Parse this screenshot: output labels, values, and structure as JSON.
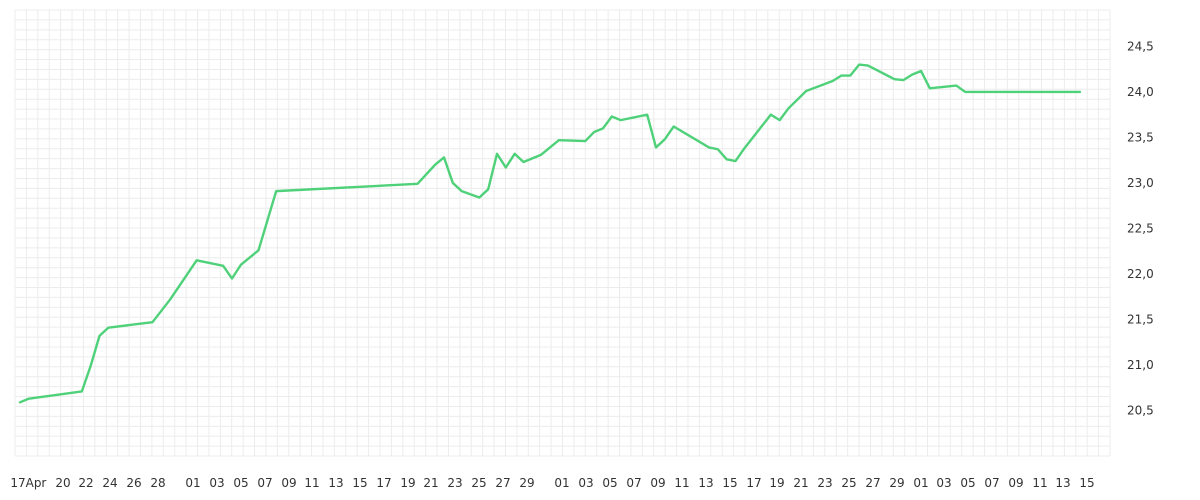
{
  "chart_data": {
    "type": "line",
    "title": "",
    "xlabel": "",
    "ylabel": "",
    "x_ticks": [
      "17",
      "Apr",
      "20",
      "22",
      "24",
      "26",
      "28",
      "01",
      "03",
      "05",
      "07",
      "09",
      "11",
      "13",
      "15",
      "17",
      "19",
      "21",
      "23",
      "25",
      "27",
      "29",
      "01",
      "03",
      "05",
      "07",
      "09",
      "11",
      "13",
      "15",
      "17",
      "19",
      "21",
      "23",
      "25",
      "27",
      "29",
      "01",
      "03",
      "05",
      "07",
      "09",
      "11",
      "13",
      "15"
    ],
    "y_ticks": [
      "20,5",
      "21,0",
      "21,5",
      "22,0",
      "22,5",
      "23,0",
      "23,5",
      "24,0",
      "24,5"
    ],
    "ylim": [
      20.0,
      24.9
    ],
    "y_axis_position": "right",
    "grid": true,
    "legend": "none",
    "colors": {
      "line": "#4fd17a",
      "grid": "#ececec",
      "text": "#333333"
    },
    "series": [
      {
        "x": [
          "Mar 17",
          "Mar 18",
          "Mar 24",
          "Mar 25",
          "Mar 26",
          "Mar 27",
          "Apr 1",
          "Apr 3",
          "Apr 6",
          "Apr 9",
          "Apr 10",
          "Apr 11",
          "Apr 12",
          "Apr 13",
          "Apr 15",
          "May 1",
          "May 3",
          "May 4",
          "May 5",
          "May 6",
          "May 8",
          "May 9",
          "May 10",
          "May 11",
          "May 12",
          "May 13",
          "May 15",
          "May 16",
          "May 17",
          "May 20",
          "May 21",
          "May 22",
          "May 23",
          "May 24",
          "May 27",
          "May 28",
          "May 29",
          "May 30",
          "Jun 3",
          "Jun 4",
          "Jun 5",
          "Jun 6",
          "Jun 7",
          "Jun 10",
          "Jun 11",
          "Jun 12",
          "Jun 14",
          "Jun 17",
          "Jun 18",
          "Jun 19",
          "Jun 20",
          "Jun 21",
          "Jun 24",
          "Jun 25",
          "Jun 26",
          "Jun 27",
          "Jun 28",
          "Jul 1",
          "Jul 2",
          "Jul 3",
          "Jul 4",
          "Jul 5",
          "Jul 8",
          "Jul 9",
          "Jul 10",
          "Jul 11",
          "Jul 12",
          "Jul 15"
        ],
        "values": [
          20.59,
          20.63,
          20.71,
          20.99,
          21.32,
          21.41,
          21.47,
          21.72,
          22.15,
          22.09,
          21.95,
          22.1,
          22.18,
          22.26,
          22.91,
          22.99,
          23.2,
          23.28,
          23.0,
          22.91,
          22.84,
          22.93,
          23.32,
          23.17,
          23.32,
          23.23,
          23.31,
          23.39,
          23.47,
          23.46,
          23.56,
          23.6,
          23.73,
          23.69,
          23.75,
          23.39,
          23.48,
          23.62,
          23.39,
          23.37,
          23.26,
          23.24,
          23.38,
          23.75,
          23.69,
          23.82,
          24.01,
          24.12,
          24.18,
          24.18,
          24.3,
          24.29,
          24.14,
          24.13,
          24.19,
          24.23,
          24.04,
          24.07,
          24.0,
          24.0,
          24.0,
          24.0,
          24.0,
          24.0,
          24.0,
          24.0,
          24.0,
          24.0
        ]
      }
    ]
  }
}
